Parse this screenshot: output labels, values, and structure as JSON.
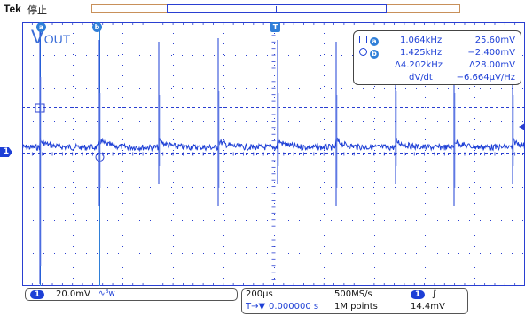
{
  "header": {
    "brand": "Tek",
    "run_state": "停止"
  },
  "waveform": {
    "label_main": "V",
    "label_sub": "OUT",
    "cursor_a_marker": "a",
    "cursor_b_marker": "b",
    "trigger_marker": "T",
    "ch1_ground_marker": "1"
  },
  "cursor_readout": {
    "a_label": "a",
    "b_label": "b",
    "a_freq": "1.064kHz",
    "a_volt": "25.60mV",
    "b_freq": "1.425kHz",
    "b_volt": "−2.400mV",
    "delta_freq": "Δ4.202kHz",
    "delta_volt": "Δ28.00mV",
    "slope_label": "dV/dt",
    "slope_value": "−6.664μV/Hz"
  },
  "channel_status": {
    "channel": "1",
    "scale": "20.0mV",
    "bw_icon": "bandwidth-limit-icon",
    "bw_symbol": "∿ᴮw"
  },
  "horizontal_status": {
    "timebase": "200μs",
    "sample_rate": "500MS/s",
    "delay_icon": "T→▼",
    "delay": "0.000000 s",
    "record_length": "1M points",
    "trigger_channel": "1",
    "trigger_slope": "∫",
    "trigger_level": "14.4mV"
  },
  "colors": {
    "trace": "#1d3fd6",
    "cursor": "#2f7fd8",
    "graticule": "#2a3fd1"
  }
}
